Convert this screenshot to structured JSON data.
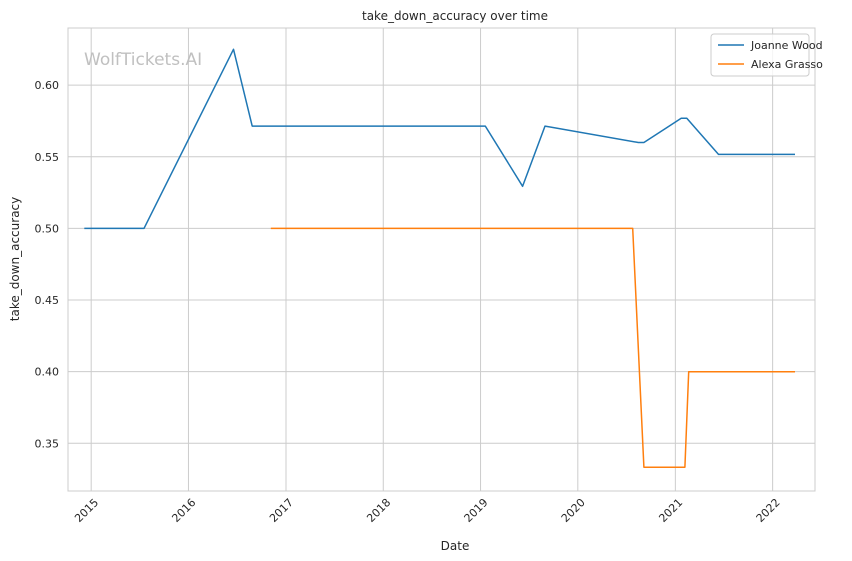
{
  "chart_data": {
    "type": "line",
    "title": "take_down_accuracy over time",
    "xlabel": "Date",
    "ylabel": "take_down_accuracy",
    "watermark": "WolfTickets.AI",
    "x_ticks": [
      "2015",
      "2016",
      "2017",
      "2018",
      "2019",
      "2020",
      "2021",
      "2022"
    ],
    "y_ticks": [
      "0.35",
      "0.40",
      "0.45",
      "0.50",
      "0.55",
      "0.60"
    ],
    "xlim": [
      "2014-10-06",
      "2022-06-09"
    ],
    "ylim": [
      0.3167,
      0.6399
    ],
    "grid": true,
    "legend_position": "top-right",
    "series": [
      {
        "name": "Joanne Wood",
        "color": "#1f77b4",
        "points": [
          {
            "x": "2014-12-06",
            "y": 0.5
          },
          {
            "x": "2015-07-18",
            "y": 0.5
          },
          {
            "x": "2016-06-18",
            "y": 0.625
          },
          {
            "x": "2016-08-27",
            "y": 0.5714
          },
          {
            "x": "2019-01-19",
            "y": 0.5714
          },
          {
            "x": "2019-06-08",
            "y": 0.5294
          },
          {
            "x": "2019-08-31",
            "y": 0.5714
          },
          {
            "x": "2020-08-15",
            "y": 0.56
          },
          {
            "x": "2020-09-05",
            "y": 0.56
          },
          {
            "x": "2021-01-23",
            "y": 0.5769
          },
          {
            "x": "2021-02-13",
            "y": 0.5769
          },
          {
            "x": "2021-06-12",
            "y": 0.5517
          },
          {
            "x": "2022-03-26",
            "y": 0.5517
          }
        ]
      },
      {
        "name": "Alexa Grasso",
        "color": "#ff7f0e",
        "points": [
          {
            "x": "2016-11-05",
            "y": 0.5
          },
          {
            "x": "2020-07-25",
            "y": 0.5
          },
          {
            "x": "2020-09-05",
            "y": 0.3333
          },
          {
            "x": "2021-02-06",
            "y": 0.3333
          },
          {
            "x": "2021-02-20",
            "y": 0.4
          },
          {
            "x": "2022-03-26",
            "y": 0.4
          }
        ]
      }
    ]
  }
}
